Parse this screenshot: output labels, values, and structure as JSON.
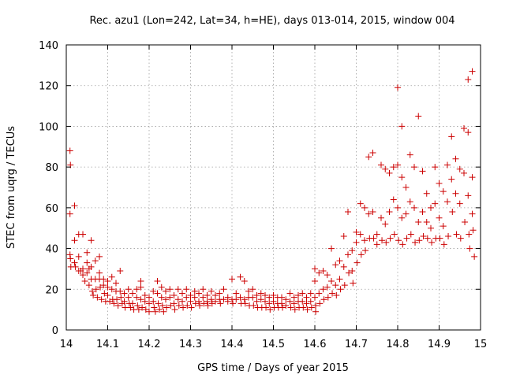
{
  "chart_data": {
    "type": "scatter",
    "title": "Rec. azu1 (Lon=242, Lat=34, h=HE), days 013-014, 2015, window 004",
    "xlabel": "GPS time / Days of year 2015",
    "ylabel": "STEC from uqrg / TECUs",
    "xlim": [
      14,
      15
    ],
    "ylim": [
      0,
      140
    ],
    "xticks": [
      14,
      14.1,
      14.2,
      14.3,
      14.4,
      14.5,
      14.6,
      14.7,
      14.8,
      14.9,
      15
    ],
    "xtick_labels": [
      "14",
      "14.1",
      "14.2",
      "14.3",
      "14.4",
      "14.5",
      "14.6",
      "14.7",
      "14.8",
      "14.9",
      "15"
    ],
    "yticks": [
      0,
      20,
      40,
      60,
      80,
      100,
      120,
      140
    ],
    "ytick_labels": [
      "0",
      "20",
      "40",
      "60",
      "80",
      "100",
      "120",
      "140"
    ],
    "grid": true,
    "marker": "+",
    "color": "#cc0000",
    "series": [
      {
        "name": "",
        "points": [
          [
            14.009,
            88
          ],
          [
            14.01,
            81
          ],
          [
            14.009,
            57
          ],
          [
            14.009,
            37
          ],
          [
            14.01,
            35
          ],
          [
            14.011,
            31
          ],
          [
            14.02,
            61
          ],
          [
            14.02,
            44
          ],
          [
            14.02,
            33
          ],
          [
            14.022,
            31
          ],
          [
            14.03,
            47
          ],
          [
            14.03,
            36
          ],
          [
            14.03,
            29
          ],
          [
            14.035,
            29
          ],
          [
            14.04,
            47
          ],
          [
            14.04,
            30
          ],
          [
            14.04,
            27
          ],
          [
            14.045,
            24
          ],
          [
            14.05,
            38
          ],
          [
            14.05,
            33
          ],
          [
            14.05,
            28
          ],
          [
            14.055,
            30
          ],
          [
            14.055,
            22
          ],
          [
            14.06,
            44
          ],
          [
            14.06,
            31
          ],
          [
            14.06,
            25
          ],
          [
            14.063,
            19
          ],
          [
            14.065,
            17
          ],
          [
            14.07,
            34
          ],
          [
            14.07,
            25
          ],
          [
            14.072,
            20
          ],
          [
            14.075,
            16
          ],
          [
            14.08,
            36
          ],
          [
            14.08,
            28
          ],
          [
            14.08,
            25
          ],
          [
            14.082,
            21
          ],
          [
            14.085,
            15
          ],
          [
            14.09,
            25
          ],
          [
            14.09,
            22
          ],
          [
            14.092,
            18
          ],
          [
            14.095,
            14
          ],
          [
            14.1,
            24
          ],
          [
            14.1,
            21
          ],
          [
            14.1,
            17
          ],
          [
            14.105,
            14
          ],
          [
            14.11,
            26
          ],
          [
            14.11,
            20
          ],
          [
            14.112,
            15
          ],
          [
            14.115,
            13
          ],
          [
            14.12,
            23
          ],
          [
            14.12,
            19
          ],
          [
            14.122,
            15
          ],
          [
            14.125,
            12
          ],
          [
            14.13,
            29
          ],
          [
            14.13,
            19
          ],
          [
            14.132,
            16
          ],
          [
            14.135,
            13
          ],
          [
            14.14,
            18
          ],
          [
            14.14,
            14
          ],
          [
            14.142,
            11
          ],
          [
            14.15,
            20
          ],
          [
            14.15,
            16
          ],
          [
            14.152,
            13
          ],
          [
            14.155,
            11
          ],
          [
            14.16,
            18
          ],
          [
            14.16,
            13
          ],
          [
            14.163,
            10
          ],
          [
            14.17,
            20
          ],
          [
            14.17,
            16
          ],
          [
            14.172,
            12
          ],
          [
            14.175,
            10
          ],
          [
            14.18,
            24
          ],
          [
            14.18,
            21
          ],
          [
            14.18,
            15
          ],
          [
            14.183,
            11
          ],
          [
            14.19,
            17
          ],
          [
            14.19,
            14
          ],
          [
            14.192,
            10
          ],
          [
            14.2,
            16
          ],
          [
            14.2,
            13
          ],
          [
            14.2,
            9
          ],
          [
            14.21,
            19
          ],
          [
            14.21,
            14
          ],
          [
            14.212,
            11
          ],
          [
            14.215,
            9
          ],
          [
            14.22,
            24
          ],
          [
            14.22,
            18
          ],
          [
            14.222,
            13
          ],
          [
            14.225,
            10
          ],
          [
            14.23,
            21
          ],
          [
            14.23,
            16
          ],
          [
            14.232,
            12
          ],
          [
            14.235,
            9
          ],
          [
            14.24,
            19
          ],
          [
            14.24,
            15
          ],
          [
            14.242,
            11
          ],
          [
            14.25,
            20
          ],
          [
            14.25,
            16
          ],
          [
            14.252,
            12
          ],
          [
            14.26,
            17
          ],
          [
            14.26,
            13
          ],
          [
            14.262,
            10
          ],
          [
            14.27,
            20
          ],
          [
            14.27,
            15
          ],
          [
            14.272,
            12
          ],
          [
            14.28,
            18
          ],
          [
            14.28,
            14
          ],
          [
            14.282,
            11
          ],
          [
            14.29,
            20
          ],
          [
            14.29,
            16
          ],
          [
            14.292,
            12
          ],
          [
            14.3,
            17
          ],
          [
            14.3,
            14
          ],
          [
            14.302,
            11
          ],
          [
            14.31,
            19
          ],
          [
            14.31,
            16
          ],
          [
            14.312,
            13
          ],
          [
            14.32,
            18
          ],
          [
            14.32,
            14
          ],
          [
            14.322,
            12
          ],
          [
            14.33,
            20
          ],
          [
            14.33,
            16
          ],
          [
            14.332,
            13
          ],
          [
            14.34,
            17
          ],
          [
            14.34,
            14
          ],
          [
            14.342,
            12
          ],
          [
            14.35,
            19
          ],
          [
            14.35,
            15
          ],
          [
            14.352,
            13
          ],
          [
            14.36,
            17
          ],
          [
            14.36,
            14
          ],
          [
            14.37,
            18
          ],
          [
            14.37,
            15
          ],
          [
            14.372,
            13
          ],
          [
            14.38,
            20
          ],
          [
            14.38,
            15
          ],
          [
            14.39,
            16
          ],
          [
            14.39,
            14
          ],
          [
            14.4,
            25
          ],
          [
            14.4,
            15
          ],
          [
            14.402,
            13
          ],
          [
            14.41,
            18
          ],
          [
            14.41,
            15
          ],
          [
            14.42,
            26
          ],
          [
            14.42,
            16
          ],
          [
            14.422,
            13
          ],
          [
            14.43,
            24
          ],
          [
            14.43,
            15
          ],
          [
            14.432,
            13
          ],
          [
            14.44,
            19
          ],
          [
            14.44,
            16
          ],
          [
            14.442,
            12
          ],
          [
            14.45,
            20
          ],
          [
            14.45,
            16
          ],
          [
            14.452,
            12
          ],
          [
            14.46,
            17
          ],
          [
            14.46,
            14
          ],
          [
            14.462,
            11
          ],
          [
            14.47,
            18
          ],
          [
            14.47,
            15
          ],
          [
            14.472,
            11
          ],
          [
            14.48,
            17
          ],
          [
            14.48,
            14
          ],
          [
            14.482,
            11
          ],
          [
            14.49,
            16
          ],
          [
            14.49,
            13
          ],
          [
            14.492,
            10
          ],
          [
            14.5,
            17
          ],
          [
            14.5,
            14
          ],
          [
            14.502,
            11
          ],
          [
            14.51,
            16
          ],
          [
            14.51,
            13
          ],
          [
            14.512,
            11
          ],
          [
            14.52,
            16
          ],
          [
            14.52,
            13
          ],
          [
            14.522,
            11
          ],
          [
            14.53,
            15
          ],
          [
            14.53,
            12
          ],
          [
            14.54,
            18
          ],
          [
            14.54,
            14
          ],
          [
            14.542,
            11
          ],
          [
            14.55,
            16
          ],
          [
            14.55,
            13
          ],
          [
            14.552,
            10
          ],
          [
            14.56,
            17
          ],
          [
            14.56,
            14
          ],
          [
            14.562,
            11
          ],
          [
            14.57,
            18
          ],
          [
            14.57,
            14
          ],
          [
            14.572,
            11
          ],
          [
            14.58,
            16
          ],
          [
            14.58,
            13
          ],
          [
            14.582,
            10
          ],
          [
            14.59,
            18
          ],
          [
            14.59,
            14
          ],
          [
            14.592,
            11
          ],
          [
            14.6,
            30
          ],
          [
            14.6,
            24
          ],
          [
            14.6,
            16
          ],
          [
            14.602,
            12
          ],
          [
            14.602,
            9
          ],
          [
            14.61,
            28
          ],
          [
            14.61,
            18
          ],
          [
            14.612,
            13
          ],
          [
            14.62,
            29
          ],
          [
            14.62,
            20
          ],
          [
            14.622,
            15
          ],
          [
            14.63,
            27
          ],
          [
            14.63,
            21
          ],
          [
            14.632,
            16
          ],
          [
            14.64,
            40
          ],
          [
            14.64,
            24
          ],
          [
            14.642,
            18
          ],
          [
            14.65,
            32
          ],
          [
            14.65,
            22
          ],
          [
            14.652,
            17
          ],
          [
            14.66,
            34
          ],
          [
            14.66,
            25
          ],
          [
            14.662,
            20
          ],
          [
            14.67,
            46
          ],
          [
            14.67,
            31
          ],
          [
            14.672,
            22
          ],
          [
            14.68,
            58
          ],
          [
            14.68,
            37
          ],
          [
            14.682,
            28
          ],
          [
            14.69,
            39
          ],
          [
            14.69,
            29
          ],
          [
            14.692,
            23
          ],
          [
            14.7,
            48
          ],
          [
            14.7,
            43
          ],
          [
            14.702,
            33
          ],
          [
            14.71,
            62
          ],
          [
            14.71,
            47
          ],
          [
            14.712,
            37
          ],
          [
            14.72,
            60
          ],
          [
            14.72,
            44
          ],
          [
            14.722,
            39
          ],
          [
            14.73,
            85
          ],
          [
            14.73,
            57
          ],
          [
            14.732,
            45
          ],
          [
            14.74,
            87
          ],
          [
            14.74,
            58
          ],
          [
            14.742,
            45
          ],
          [
            14.75,
            47
          ],
          [
            14.75,
            42
          ],
          [
            14.76,
            81
          ],
          [
            14.76,
            55
          ],
          [
            14.762,
            44
          ],
          [
            14.77,
            79
          ],
          [
            14.77,
            52
          ],
          [
            14.772,
            43
          ],
          [
            14.78,
            77
          ],
          [
            14.78,
            58
          ],
          [
            14.782,
            45
          ],
          [
            14.79,
            80
          ],
          [
            14.79,
            64
          ],
          [
            14.792,
            47
          ],
          [
            14.8,
            119
          ],
          [
            14.8,
            81
          ],
          [
            14.8,
            60
          ],
          [
            14.802,
            44
          ],
          [
            14.81,
            100
          ],
          [
            14.81,
            75
          ],
          [
            14.81,
            55
          ],
          [
            14.812,
            42
          ],
          [
            14.82,
            70
          ],
          [
            14.82,
            57
          ],
          [
            14.822,
            45
          ],
          [
            14.83,
            86
          ],
          [
            14.83,
            63
          ],
          [
            14.832,
            47
          ],
          [
            14.84,
            80
          ],
          [
            14.84,
            60
          ],
          [
            14.842,
            43
          ],
          [
            14.85,
            105
          ],
          [
            14.85,
            53
          ],
          [
            14.852,
            44
          ],
          [
            14.86,
            78
          ],
          [
            14.86,
            58
          ],
          [
            14.862,
            46
          ],
          [
            14.87,
            67
          ],
          [
            14.87,
            53
          ],
          [
            14.872,
            45
          ],
          [
            14.88,
            60
          ],
          [
            14.88,
            50
          ],
          [
            14.882,
            43
          ],
          [
            14.89,
            80
          ],
          [
            14.89,
            62
          ],
          [
            14.892,
            45
          ],
          [
            14.9,
            72
          ],
          [
            14.9,
            55
          ],
          [
            14.902,
            45
          ],
          [
            14.91,
            68
          ],
          [
            14.91,
            51
          ],
          [
            14.912,
            42
          ],
          [
            14.92,
            81
          ],
          [
            14.92,
            63
          ],
          [
            14.922,
            46
          ],
          [
            14.93,
            95
          ],
          [
            14.93,
            74
          ],
          [
            14.932,
            58
          ],
          [
            14.94,
            84
          ],
          [
            14.94,
            67
          ],
          [
            14.942,
            47
          ],
          [
            14.95,
            79
          ],
          [
            14.95,
            62
          ],
          [
            14.952,
            45
          ],
          [
            14.96,
            99
          ],
          [
            14.96,
            77
          ],
          [
            14.962,
            53
          ],
          [
            14.97,
            123
          ],
          [
            14.97,
            97
          ],
          [
            14.97,
            66
          ],
          [
            14.972,
            47
          ],
          [
            14.98,
            127
          ],
          [
            14.98,
            75
          ],
          [
            14.98,
            57
          ],
          [
            14.982,
            49
          ],
          [
            14.985,
            36
          ],
          [
            14.974,
            40
          ]
        ]
      }
    ]
  }
}
